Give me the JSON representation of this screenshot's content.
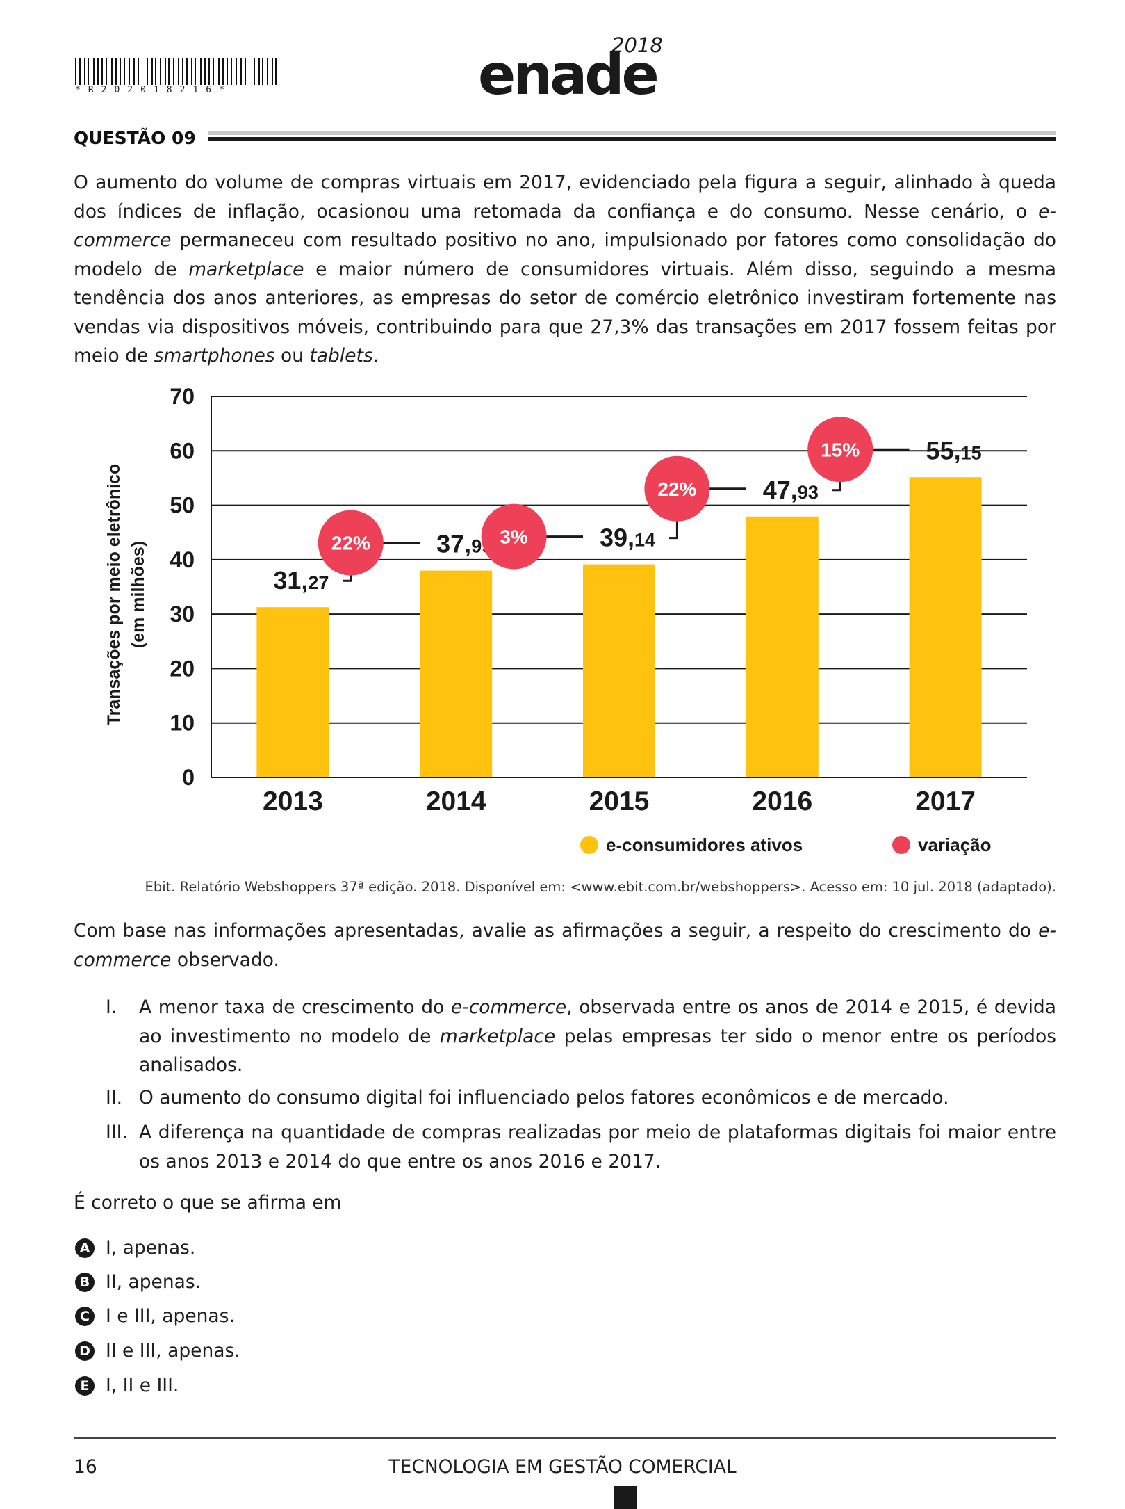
{
  "header": {
    "barcode_text": "*R202018216*",
    "logo_text": "enade",
    "logo_year": "2018"
  },
  "question": {
    "title": "QUESTÃO 09",
    "intro_1": "O aumento do volume de compras virtuais em 2017, evidenciado pela figura a seguir, alinhado à queda dos índices de inflação, ocasionou uma retomada da confiança e do consumo. Nesse cenário, o ",
    "intro_em_1": "e-commerce",
    "intro_2": " permaneceu com resultado positivo no ano, impulsionado por fatores como consolidação do modelo de ",
    "intro_em_2": "marketplace",
    "intro_3": " e maior número de consumidores virtuais. Além disso, seguindo a mesma tendência dos anos anteriores, as empresas do setor de comércio eletrônico investiram fortemente nas vendas via dispositivos móveis, contribuindo para que 27,3% das transações em 2017 fossem feitas por meio de ",
    "intro_em_3": "smartphones",
    "intro_4": " ou ",
    "intro_em_4": "tablets",
    "intro_5": ".",
    "source": "Ebit. Relatório Webshoppers 37ª edição. 2018. Disponível em: <www.ebit.com.br/webshoppers>. Acesso em: 10 jul. 2018 (adaptado).",
    "prompt_1": "Com base nas informações apresentadas, avalie as afirmações a seguir, a respeito do crescimento do ",
    "prompt_em": "e-commerce",
    "prompt_2": " observado.",
    "statements": [
      {
        "num": "I.",
        "a": "A menor taxa de crescimento do ",
        "em1": "e-commerce",
        "b": ", observada entre os anos de 2014 e 2015, é devida ao investimento no modelo de ",
        "em2": "marketplace",
        "c": " pelas empresas ter sido o menor entre os períodos analisados."
      },
      {
        "num": "II.",
        "a": "O aumento do consumo digital foi influenciado pelos fatores econômicos e de mercado."
      },
      {
        "num": "III.",
        "a": "A diferença na quantidade de compras realizadas por meio de plataformas digitais foi maior entre os anos 2013 e 2014 do que entre os anos 2016 e 2017."
      }
    ],
    "ask": "É correto o que se afirma em",
    "options": [
      {
        "letter": "A",
        "text": "I, apenas."
      },
      {
        "letter": "B",
        "text": "II, apenas."
      },
      {
        "letter": "C",
        "text": "I e III, apenas."
      },
      {
        "letter": "D",
        "text": "II e III, apenas."
      },
      {
        "letter": "E",
        "text": "I, II e III."
      }
    ]
  },
  "chart_data": {
    "type": "bar",
    "ylabel_line1": "Transações por meio eletrônico",
    "ylabel_line2": "(em milhões)",
    "ylim": [
      0,
      70
    ],
    "yticks": [
      0,
      10,
      20,
      30,
      40,
      50,
      60,
      70
    ],
    "grid": true,
    "categories": [
      "2013",
      "2014",
      "2015",
      "2016",
      "2017"
    ],
    "series": [
      {
        "name": "e-consumidores ativos",
        "color": "#FFC20E",
        "values": [
          31.27,
          37.99,
          39.14,
          47.93,
          55.15
        ],
        "labels_int": [
          "31,",
          "37,",
          "39,",
          "47,",
          "55,"
        ],
        "labels_dec": [
          "27",
          "99",
          "14",
          "93",
          "15"
        ]
      }
    ],
    "variation": {
      "name": "variação",
      "color": "#EE4056",
      "labels": [
        "22%",
        "3%",
        "22%",
        "15%"
      ]
    },
    "legend_position": "bottom-right"
  },
  "footer": {
    "page_number": "16",
    "course": "TECNOLOGIA EM GESTÃO COMERCIAL"
  }
}
